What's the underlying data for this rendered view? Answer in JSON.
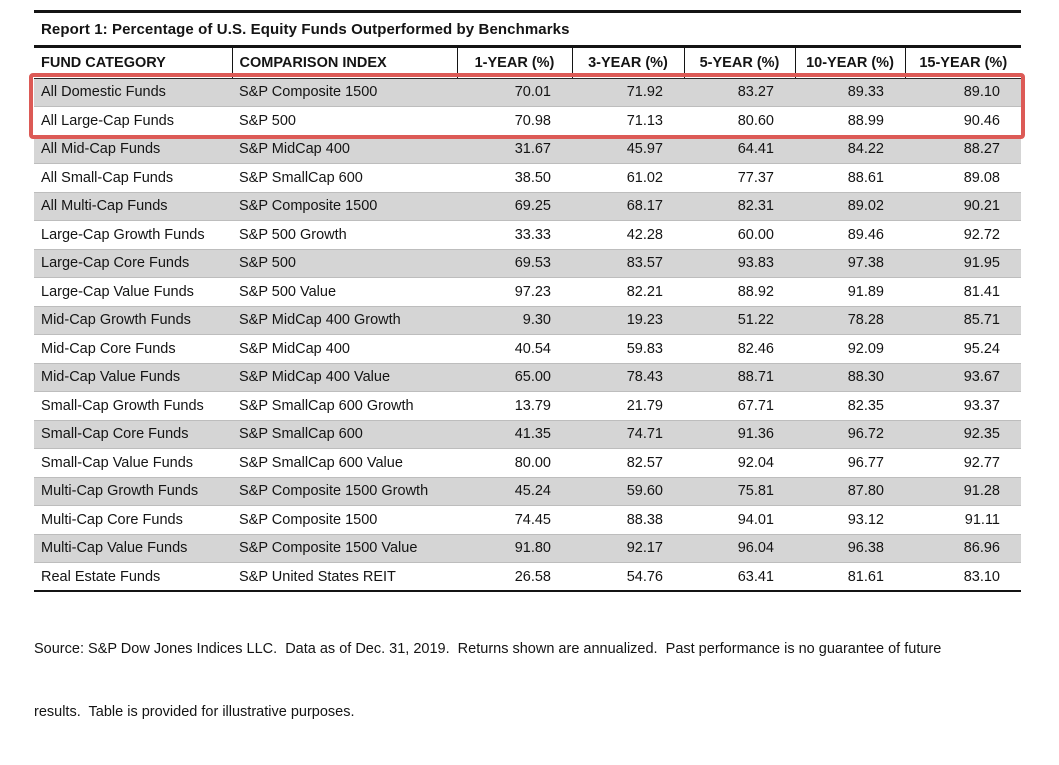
{
  "report": {
    "title": "Report 1: Percentage of U.S. Equity Funds Outperformed by Benchmarks",
    "source_note_lines": [
      "Source: S&P Dow Jones Indices LLC.  Data as of Dec. 31, 2019.  Returns shown are annualized.  Past performance is no guarantee of future",
      "results.  Table is provided for illustrative purposes."
    ]
  },
  "colors": {
    "highlight_red": "#dc5a56",
    "row_stripe_gray": "#d5d5d5",
    "table_border_black": "#141414"
  },
  "chart_data": {
    "type": "table",
    "title": "Report 1: Percentage of U.S. Equity Funds Outperformed by Benchmarks",
    "columns": [
      "FUND CATEGORY",
      "COMPARISON INDEX",
      "1-YEAR (%)",
      "3-YEAR (%)",
      "5-YEAR (%)",
      "10-YEAR (%)",
      "15-YEAR (%)"
    ],
    "rows": [
      {
        "fund_category": "All Domestic Funds",
        "comparison_index": "S&P Composite 1500",
        "values": [
          "70.01",
          "71.92",
          "83.27",
          "89.33",
          "89.10"
        ],
        "highlighted": true
      },
      {
        "fund_category": "All Large-Cap Funds",
        "comparison_index": "S&P 500",
        "values": [
          "70.98",
          "71.13",
          "80.60",
          "88.99",
          "90.46"
        ],
        "highlighted": true
      },
      {
        "fund_category": "All Mid-Cap Funds",
        "comparison_index": "S&P MidCap 400",
        "values": [
          "31.67",
          "45.97",
          "64.41",
          "84.22",
          "88.27"
        ],
        "highlighted": false
      },
      {
        "fund_category": "All Small-Cap Funds",
        "comparison_index": "S&P SmallCap 600",
        "values": [
          "38.50",
          "61.02",
          "77.37",
          "88.61",
          "89.08"
        ],
        "highlighted": false
      },
      {
        "fund_category": "All Multi-Cap Funds",
        "comparison_index": "S&P Composite 1500",
        "values": [
          "69.25",
          "68.17",
          "82.31",
          "89.02",
          "90.21"
        ],
        "highlighted": false
      },
      {
        "fund_category": "Large-Cap Growth Funds",
        "comparison_index": "S&P 500 Growth",
        "values": [
          "33.33",
          "42.28",
          "60.00",
          "89.46",
          "92.72"
        ],
        "highlighted": false
      },
      {
        "fund_category": "Large-Cap Core Funds",
        "comparison_index": "S&P 500",
        "values": [
          "69.53",
          "83.57",
          "93.83",
          "97.38",
          "91.95"
        ],
        "highlighted": false
      },
      {
        "fund_category": "Large-Cap Value Funds",
        "comparison_index": "S&P 500 Value",
        "values": [
          "97.23",
          "82.21",
          "88.92",
          "91.89",
          "81.41"
        ],
        "highlighted": false
      },
      {
        "fund_category": "Mid-Cap Growth Funds",
        "comparison_index": "S&P MidCap 400 Growth",
        "values": [
          "9.30",
          "19.23",
          "51.22",
          "78.28",
          "85.71"
        ],
        "highlighted": false
      },
      {
        "fund_category": "Mid-Cap Core Funds",
        "comparison_index": "S&P MidCap 400",
        "values": [
          "40.54",
          "59.83",
          "82.46",
          "92.09",
          "95.24"
        ],
        "highlighted": false
      },
      {
        "fund_category": "Mid-Cap Value Funds",
        "comparison_index": "S&P MidCap 400 Value",
        "values": [
          "65.00",
          "78.43",
          "88.71",
          "88.30",
          "93.67"
        ],
        "highlighted": false
      },
      {
        "fund_category": "Small-Cap Growth Funds",
        "comparison_index": "S&P SmallCap 600 Growth",
        "values": [
          "13.79",
          "21.79",
          "67.71",
          "82.35",
          "93.37"
        ],
        "highlighted": false
      },
      {
        "fund_category": "Small-Cap Core Funds",
        "comparison_index": "S&P SmallCap 600",
        "values": [
          "41.35",
          "74.71",
          "91.36",
          "96.72",
          "92.35"
        ],
        "highlighted": false
      },
      {
        "fund_category": "Small-Cap Value Funds",
        "comparison_index": "S&P SmallCap 600 Value",
        "values": [
          "80.00",
          "82.57",
          "92.04",
          "96.77",
          "92.77"
        ],
        "highlighted": false
      },
      {
        "fund_category": "Multi-Cap Growth Funds",
        "comparison_index": "S&P Composite 1500 Growth",
        "values": [
          "45.24",
          "59.60",
          "75.81",
          "87.80",
          "91.28"
        ],
        "highlighted": false
      },
      {
        "fund_category": "Multi-Cap Core Funds",
        "comparison_index": "S&P Composite 1500",
        "values": [
          "74.45",
          "88.38",
          "94.01",
          "93.12",
          "91.11"
        ],
        "highlighted": false
      },
      {
        "fund_category": "Multi-Cap Value Funds",
        "comparison_index": "S&P Composite 1500 Value",
        "values": [
          "91.80",
          "92.17",
          "96.04",
          "96.38",
          "86.96"
        ],
        "highlighted": false
      },
      {
        "fund_category": "Real Estate Funds",
        "comparison_index": "S&P United States REIT",
        "values": [
          "26.58",
          "54.76",
          "63.41",
          "81.61",
          "83.10"
        ],
        "highlighted": false
      }
    ],
    "annotation": "Red box highlights the All Domestic Funds and All Large-Cap Funds rows."
  }
}
